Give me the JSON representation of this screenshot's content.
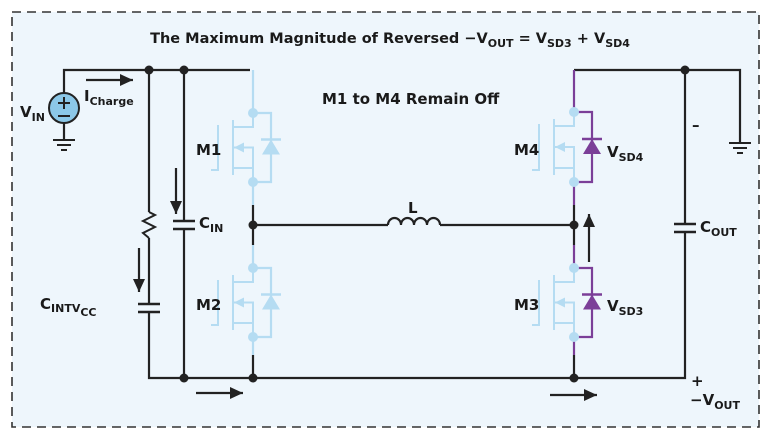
{
  "title": {
    "main": "The Maximum Magnitude of Reversed ",
    "vout": "−V",
    "vout_sub": "OUT",
    "eq": " = V",
    "sd3_sub": "SD3",
    "plus": " + V",
    "sd4_sub": "SD4"
  },
  "note": "M1 to M4 Remain Off",
  "labels": {
    "vin": "V",
    "vin_sub": "IN",
    "icharge": "I",
    "icharge_sub": "Charge",
    "cin": "C",
    "cin_sub": "IN",
    "cintvcc": "C",
    "cintvcc_sub": "INTV",
    "cintvcc_sub2": "CC",
    "m1": "M1",
    "m2": "M2",
    "m3": "M3",
    "m4": "M4",
    "l": "L",
    "vsd4": "V",
    "vsd4_sub": "SD4",
    "vsd3": "V",
    "vsd3_sub": "SD3",
    "cout": "C",
    "cout_sub": "OUT",
    "minus": "–",
    "plus": "+",
    "vout": "−V",
    "vout_sub": "OUT"
  },
  "colors": {
    "background": "#eef6fc",
    "wire": "#222222",
    "off_device": "#b5dcf2",
    "conducting": "#7b3f98",
    "source_fill": "#8cc8e8",
    "border": "#333333"
  }
}
